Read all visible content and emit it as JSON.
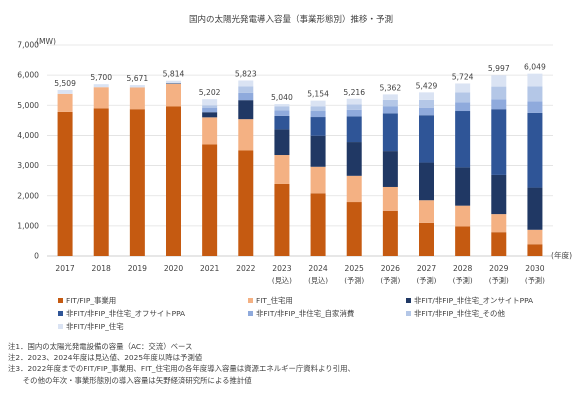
{
  "chart_data": {
    "type": "bar",
    "stacked": true,
    "title": "国内の太陽光発電導入容量（事業形態別）推移・予測",
    "ylabel": "(MW)",
    "xlabel": "(年度)",
    "ylim": [
      0,
      7000
    ],
    "yticks": [
      "0",
      "1,000",
      "2,000",
      "3,000",
      "4,000",
      "5,000",
      "6,000",
      "7,000"
    ],
    "grid": true,
    "legend_position": "bottom",
    "categories": [
      "2017",
      "2018",
      "2019",
      "2020",
      "2021",
      "2022",
      "2023",
      "2024",
      "2025",
      "2026",
      "2027",
      "2028",
      "2029",
      "2030"
    ],
    "sublabels": [
      "",
      "",
      "",
      "",
      "",
      "",
      "(見込)",
      "(見込)",
      "(予測)",
      "(予測)",
      "(予測)",
      "(予測)",
      "(予測)",
      "(予測)"
    ],
    "totals": [
      "5,509",
      "5,700",
      "5,671",
      "5,814",
      "5,202",
      "5,823",
      "5,040",
      "5,154",
      "5,216",
      "5,362",
      "5,429",
      "5,724",
      "5,997",
      "6,049"
    ],
    "series": [
      {
        "name": "FIT/FIP_事業用",
        "color": "#c55a11",
        "values": [
          4780,
          4900,
          4870,
          4960,
          3700,
          3500,
          2390,
          2080,
          1790,
          1500,
          1100,
          980,
          790,
          390
        ]
      },
      {
        "name": "FIT_住宅用",
        "color": "#f4b183",
        "values": [
          600,
          700,
          720,
          750,
          900,
          1040,
          960,
          880,
          870,
          790,
          750,
          690,
          600,
          480
        ]
      },
      {
        "name": "非FIT/非FIP_非住宅_オンサイトPPA",
        "color": "#203864",
        "values": [
          0,
          0,
          0,
          20,
          170,
          630,
          850,
          1030,
          1120,
          1190,
          1250,
          1270,
          1300,
          1400
        ]
      },
      {
        "name": "非FIT/非FIP_非住宅_オフサイトPPA",
        "color": "#2f5597",
        "values": [
          0,
          0,
          0,
          0,
          0,
          0,
          450,
          620,
          850,
          1250,
          1570,
          1870,
          2180,
          2480
        ]
      },
      {
        "name": "非FIT/非FIP_非住宅_自家消費",
        "color": "#8faadc",
        "values": [
          0,
          0,
          0,
          0,
          140,
          240,
          180,
          200,
          220,
          240,
          250,
          290,
          330,
          380
        ]
      },
      {
        "name": "非FIT/非FIP_非住宅_その他",
        "color": "#b4c7e7",
        "values": [
          0,
          0,
          0,
          0,
          90,
          220,
          130,
          150,
          180,
          210,
          260,
          330,
          420,
          500
        ]
      },
      {
        "name": "非FIT/非FIP_住宅",
        "color": "#dae3f3",
        "values": [
          129,
          100,
          81,
          84,
          202,
          193,
          80,
          194,
          186,
          182,
          249,
          294,
          377,
          419
        ]
      }
    ]
  },
  "notes": [
    "注1．国内の太陽光発電設備の容量（AC：交流）ベース",
    "注2．2023、2024年度は見込値、2025年度以降は予測値",
    "注3．2022年度までのFIT/FIP_事業用、FIT_住宅用の各年度導入容量は資源エネルギー庁資料より引用、",
    "　　その他の年次・事業形態別の導入容量は矢野経済研究所による推計値"
  ]
}
